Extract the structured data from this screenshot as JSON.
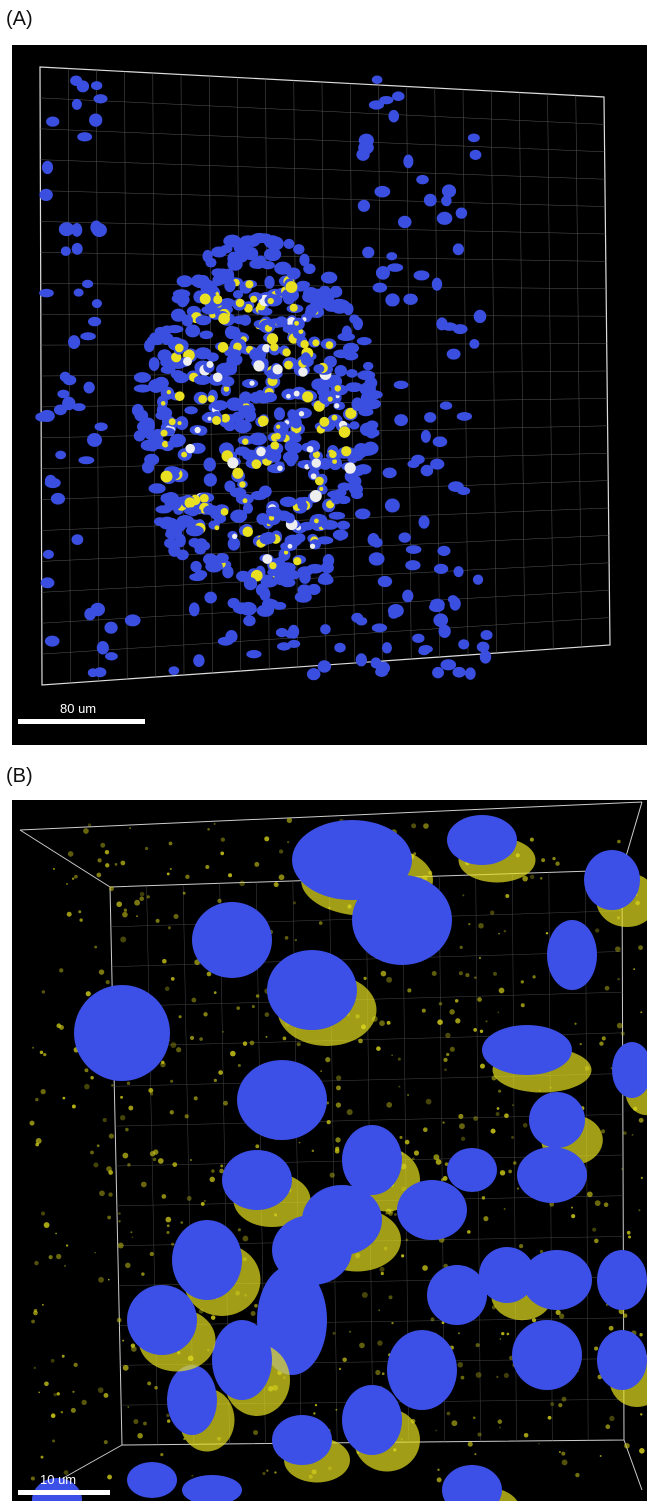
{
  "panels": [
    {
      "label": "(A)",
      "scale_bar": "80 um"
    },
    {
      "label": "(B)",
      "scale_bar": "10 um"
    }
  ]
}
